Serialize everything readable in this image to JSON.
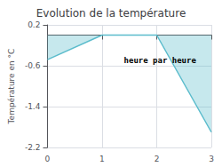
{
  "chart_data": {
    "type": "line",
    "title": "Evolution de la température",
    "ylabel": "Température en °C",
    "annotation": "heure par heure",
    "x": [
      0,
      1,
      2,
      3
    ],
    "values": [
      -0.48,
      0.0,
      0.0,
      -1.9
    ],
    "baseline": 0.0,
    "color": "#5bbccc",
    "xlim": [
      0,
      3
    ],
    "xticks": [
      0,
      1,
      2,
      3
    ],
    "ylim": [
      -2.2,
      0.2
    ],
    "yticks": [
      0.2,
      -0.6,
      -1.4,
      -2.2
    ],
    "grid": true
  }
}
